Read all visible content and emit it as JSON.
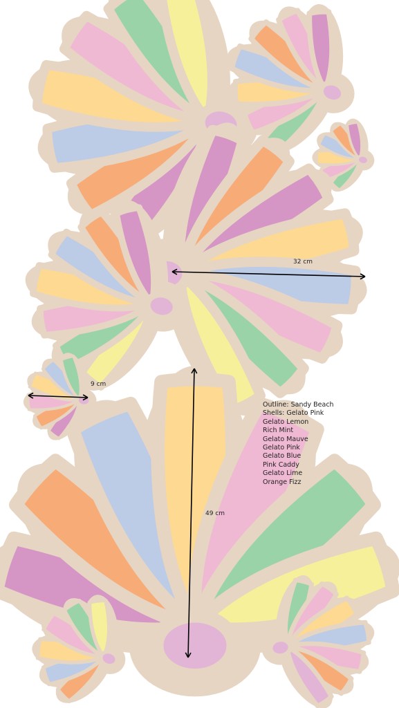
{
  "colors": {
    "outline": "#e6d5c3",
    "lemon": "#f7f09a",
    "mint": "#9ad3a8",
    "mauve": "#d595c5",
    "pink": "#f0b9d3",
    "blue": "#bccbe6",
    "caddy": "#e2b4d6",
    "lime": "#f6f2a5",
    "orange": "#f7ab77",
    "yellow": "#fdd991",
    "line": "#000000"
  },
  "dimensions": {
    "width_label": "32 cm",
    "small_label": "9 cm",
    "height_label": "49 cm"
  },
  "legend": {
    "lines": [
      "Outline: Sandy Beach",
      "Shells: Gelato Pink",
      "Gelato Lemon",
      "Rich Mint",
      "Gelato Mauve",
      "Gelato Pink",
      "Gelato Blue",
      "Pink Caddy",
      "Gelato Lime",
      "Orange Fizz"
    ]
  }
}
